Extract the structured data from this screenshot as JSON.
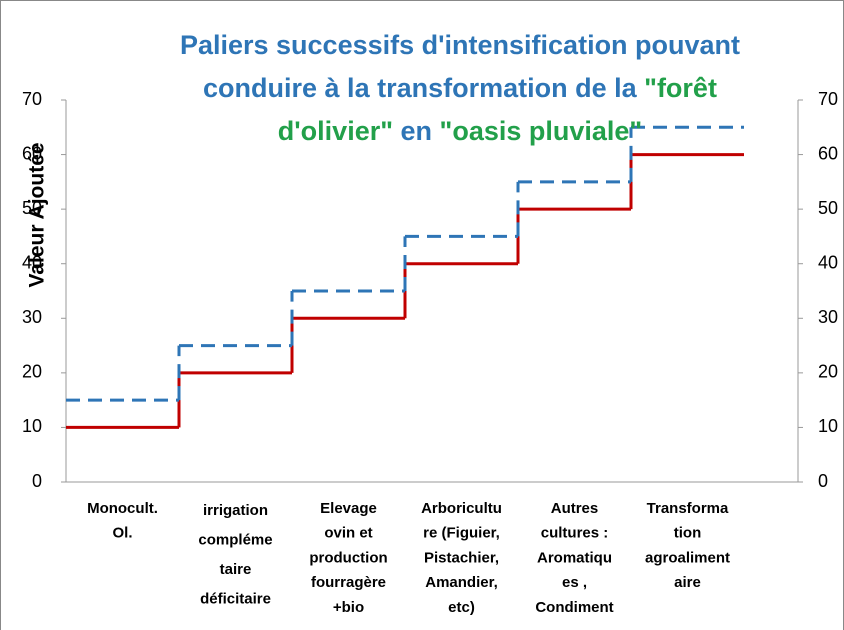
{
  "chart_data": {
    "type": "step",
    "title_lines": [
      [
        {
          "text": "Paliers successifs d'intensification pouvant",
          "color": "#2e75b6"
        }
      ],
      [
        {
          "text": "conduire à la transformation de la ",
          "color": "#2e75b6"
        },
        {
          "text": "\"forêt",
          "color": "#22a04a"
        }
      ],
      [
        {
          "text": "d'olivier\"",
          "color": "#22a04a"
        },
        {
          "text": " en ",
          "color": "#2e75b6"
        },
        {
          "text": "\"oasis pluviale\"",
          "color": "#22a04a"
        }
      ]
    ],
    "ylabel": "Valeur Ajoutée",
    "categories": [
      [
        "Monocult.",
        "Ol."
      ],
      [
        "irrigation",
        "compléme",
        "taire",
        "déficitaire"
      ],
      [
        "Elevage",
        "ovin et",
        "production",
        "fourragère",
        "+bio"
      ],
      [
        "Arboricultu",
        "re (Figuier,",
        "Pistachier,",
        "Amandier,",
        "etc)"
      ],
      [
        "Autres",
        "cultures :",
        "Aromatiqu",
        "es ,",
        "Condiment"
      ],
      [
        "Transforma",
        "tion",
        "agroaliment",
        "aire"
      ]
    ],
    "series": [
      {
        "color": "#c00000",
        "dash": false,
        "values": [
          10,
          20,
          30,
          40,
          50,
          60
        ]
      },
      {
        "color": "#2e75b6",
        "dash": true,
        "axis": "y2",
        "values": [
          15,
          25,
          35,
          45,
          55,
          65
        ]
      }
    ],
    "ylim": [
      0,
      70
    ],
    "yticks": [
      0,
      10,
      20,
      30,
      40,
      50,
      60,
      70
    ],
    "y2lim": [
      0,
      70
    ],
    "y2ticks": [
      0,
      10,
      20,
      30,
      40,
      50,
      60,
      70
    ]
  }
}
